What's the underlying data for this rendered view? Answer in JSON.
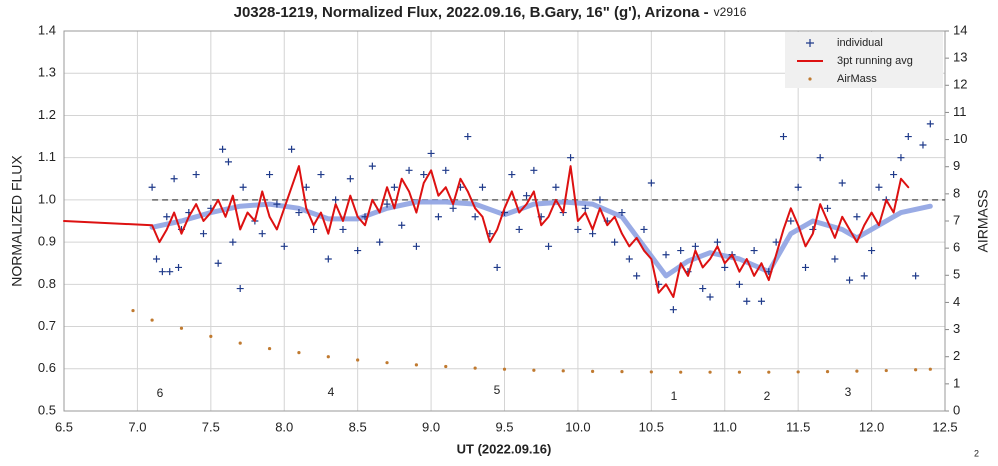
{
  "chart_data": {
    "type": "combo",
    "title": "J0328-1219, Normalized Flux, 2022.09.16, B.Gary, 16\" (g'), Arizona -",
    "version": "v2916",
    "xlabel": "UT (2022.09.16)",
    "ylabel": "NORMALIZED FLUX",
    "y2label": "AIRMASS",
    "footnote": "2",
    "annotations": [
      "6",
      "4",
      "5",
      "1",
      "2",
      "3"
    ],
    "xlim": [
      6.5,
      12.5
    ],
    "xticks": [
      6.5,
      {
        "value": 7,
        "label": "7.0"
      },
      7.5,
      {
        "value": 8,
        "label": "8.0"
      },
      8.5,
      {
        "value": 9,
        "label": "9.0"
      },
      9.5,
      {
        "value": 10,
        "label": "10.0"
      },
      10.5,
      {
        "value": 11,
        "label": "11.0"
      },
      11.5,
      {
        "value": 12,
        "label": "12.0"
      },
      12.5
    ],
    "ylim": [
      0.5,
      1.4
    ],
    "yticks": [
      0.5,
      0.6,
      0.7,
      0.8,
      0.9,
      {
        "value": 1,
        "label": "1.0"
      },
      1.1,
      1.2,
      1.3,
      1.4
    ],
    "y2lim": [
      0,
      14
    ],
    "y2ticks": [
      0,
      1,
      2,
      3,
      4,
      5,
      6,
      7,
      8,
      9,
      10,
      11,
      12,
      13,
      14
    ],
    "grid": true,
    "legend": "top-right",
    "reference_line": 1,
    "series": [
      {
        "name": "individual",
        "type": "scatter",
        "color": "#1f3a8a",
        "x": [
          7.1,
          7.13,
          7.17,
          7.2,
          7.22,
          7.25,
          7.28,
          7.3,
          7.35,
          7.4,
          7.45,
          7.5,
          7.55,
          7.58,
          7.62,
          7.65,
          7.7,
          7.72,
          7.8,
          7.85,
          7.9,
          7.95,
          8.0,
          8.05,
          8.1,
          8.15,
          8.2,
          8.25,
          8.3,
          8.35,
          8.4,
          8.45,
          8.5,
          8.55,
          8.6,
          8.65,
          8.7,
          8.75,
          8.8,
          8.85,
          8.9,
          8.95,
          9.0,
          9.05,
          9.1,
          9.15,
          9.2,
          9.25,
          9.3,
          9.35,
          9.4,
          9.45,
          9.5,
          9.55,
          9.6,
          9.65,
          9.7,
          9.75,
          9.8,
          9.85,
          9.9,
          9.95,
          10.0,
          10.05,
          10.1,
          10.15,
          10.2,
          10.25,
          10.3,
          10.35,
          10.4,
          10.45,
          10.5,
          10.55,
          10.6,
          10.65,
          10.7,
          10.75,
          10.8,
          10.85,
          10.9,
          10.95,
          11.0,
          11.05,
          11.1,
          11.15,
          11.2,
          11.25,
          11.3,
          11.35,
          11.4,
          11.45,
          11.5,
          11.55,
          11.6,
          11.65,
          11.7,
          11.75,
          11.8,
          11.85,
          11.9,
          11.95,
          12.0,
          12.05,
          12.1,
          12.15,
          12.2,
          12.25,
          12.3,
          12.35,
          12.4
        ],
        "values": [
          1.03,
          0.86,
          0.83,
          0.96,
          0.83,
          1.05,
          0.84,
          0.93,
          0.97,
          1.06,
          0.92,
          0.98,
          0.85,
          1.12,
          1.09,
          0.9,
          0.79,
          1.03,
          0.95,
          0.92,
          1.06,
          0.99,
          0.89,
          1.12,
          0.97,
          1.03,
          0.93,
          1.06,
          0.86,
          1.0,
          0.93,
          1.05,
          0.88,
          0.96,
          1.08,
          0.9,
          0.99,
          1.03,
          0.94,
          1.07,
          0.89,
          1.06,
          1.11,
          0.96,
          1.07,
          0.98,
          1.03,
          1.15,
          0.96,
          1.03,
          0.92,
          0.84,
          0.97,
          1.06,
          0.93,
          1.01,
          1.07,
          0.96,
          0.89,
          1.03,
          0.97,
          1.1,
          0.93,
          0.98,
          0.92,
          1.0,
          0.95,
          0.9,
          0.97,
          0.86,
          0.82,
          0.93,
          1.04,
          0.8,
          0.87,
          0.74,
          0.88,
          0.83,
          0.89,
          0.79,
          0.77,
          0.9,
          0.84,
          0.87,
          0.8,
          0.76,
          0.88,
          0.76,
          0.83,
          0.9,
          1.15,
          0.95,
          1.03,
          0.84,
          0.93,
          1.1,
          0.98,
          0.86,
          1.04,
          0.81,
          0.96,
          0.82,
          0.88,
          1.03,
          1.0,
          1.06,
          1.1,
          1.15,
          0.82,
          1.13,
          1.18
        ]
      },
      {
        "name": "3pt running avg",
        "type": "line",
        "color": "#dd1111",
        "x": [
          6.5,
          7.1,
          7.15,
          7.2,
          7.25,
          7.3,
          7.35,
          7.4,
          7.45,
          7.5,
          7.55,
          7.6,
          7.65,
          7.7,
          7.75,
          7.8,
          7.85,
          7.9,
          7.95,
          8.0,
          8.05,
          8.1,
          8.15,
          8.2,
          8.25,
          8.3,
          8.35,
          8.4,
          8.45,
          8.5,
          8.55,
          8.6,
          8.65,
          8.7,
          8.75,
          8.8,
          8.85,
          8.9,
          8.95,
          9.0,
          9.05,
          9.1,
          9.15,
          9.2,
          9.25,
          9.3,
          9.35,
          9.4,
          9.45,
          9.5,
          9.55,
          9.6,
          9.65,
          9.7,
          9.75,
          9.8,
          9.85,
          9.9,
          9.95,
          10.0,
          10.05,
          10.1,
          10.15,
          10.2,
          10.25,
          10.3,
          10.35,
          10.4,
          10.45,
          10.5,
          10.55,
          10.6,
          10.65,
          10.7,
          10.75,
          10.8,
          10.85,
          10.9,
          10.95,
          11.0,
          11.05,
          11.1,
          11.15,
          11.2,
          11.25,
          11.3,
          11.35,
          11.4,
          11.45,
          11.5,
          11.55,
          11.6,
          11.65,
          11.7,
          11.75,
          11.8,
          11.85,
          11.9,
          11.95,
          12.0,
          12.05,
          12.1,
          12.15,
          12.2,
          12.25
        ],
        "values": [
          0.95,
          0.94,
          0.9,
          0.93,
          0.97,
          0.92,
          0.96,
          0.99,
          0.95,
          0.97,
          1.0,
          0.96,
          1.01,
          0.93,
          0.97,
          0.95,
          1.02,
          0.96,
          0.93,
          0.98,
          1.03,
          1.08,
          0.98,
          0.94,
          0.97,
          0.92,
          0.99,
          0.95,
          1.01,
          0.96,
          0.94,
          1.0,
          0.97,
          1.03,
          0.98,
          1.05,
          1.02,
          0.97,
          1.04,
          1.07,
          1.01,
          1.03,
          0.99,
          1.05,
          1.02,
          0.98,
          0.96,
          0.9,
          0.93,
          0.98,
          1.02,
          0.97,
          0.99,
          1.02,
          0.94,
          0.96,
          1.0,
          0.97,
          1.08,
          0.95,
          0.97,
          0.93,
          0.98,
          0.94,
          0.96,
          0.92,
          0.89,
          0.91,
          0.88,
          0.86,
          0.78,
          0.8,
          0.77,
          0.85,
          0.82,
          0.88,
          0.84,
          0.86,
          0.89,
          0.85,
          0.87,
          0.83,
          0.86,
          0.82,
          0.85,
          0.81,
          0.87,
          0.93,
          0.98,
          0.94,
          0.89,
          0.92,
          0.99,
          0.95,
          0.91,
          0.96,
          0.93,
          0.9,
          0.94,
          0.97,
          0.94,
          1.0,
          0.97,
          1.05,
          1.03
        ]
      },
      {
        "name": "AirMass",
        "type": "dots",
        "axis": "y2",
        "color": "#c07a30",
        "x": [
          6.97,
          7.1,
          7.3,
          7.5,
          7.7,
          7.9,
          8.1,
          8.3,
          8.5,
          8.7,
          8.9,
          9.1,
          9.3,
          9.5,
          9.7,
          9.9,
          10.1,
          10.3,
          10.5,
          10.7,
          10.9,
          11.1,
          11.3,
          11.5,
          11.7,
          11.9,
          12.1,
          12.3,
          12.4
        ],
        "values": [
          3.7,
          3.35,
          3.05,
          2.75,
          2.5,
          2.3,
          2.15,
          2.0,
          1.88,
          1.78,
          1.7,
          1.64,
          1.58,
          1.54,
          1.5,
          1.48,
          1.46,
          1.45,
          1.44,
          1.43,
          1.43,
          1.43,
          1.43,
          1.44,
          1.45,
          1.47,
          1.49,
          1.52,
          1.54
        ]
      },
      {
        "type": "line",
        "color": "#8ea2e2",
        "width": 5,
        "x": [
          7.1,
          7.3,
          7.5,
          7.7,
          7.9,
          8.1,
          8.3,
          8.5,
          8.7,
          8.9,
          9.1,
          9.3,
          9.5,
          9.7,
          9.9,
          10.1,
          10.3,
          10.45,
          10.6,
          10.75,
          10.9,
          11.1,
          11.3,
          11.45,
          11.6,
          11.8,
          11.9,
          12.05,
          12.2,
          12.4
        ],
        "values": [
          0.935,
          0.95,
          0.97,
          0.985,
          0.99,
          0.98,
          0.955,
          0.955,
          0.98,
          0.995,
          0.995,
          0.99,
          0.965,
          0.99,
          0.995,
          0.99,
          0.96,
          0.89,
          0.82,
          0.855,
          0.875,
          0.86,
          0.83,
          0.92,
          0.95,
          0.93,
          0.91,
          0.94,
          0.97,
          0.985
        ]
      }
    ]
  }
}
